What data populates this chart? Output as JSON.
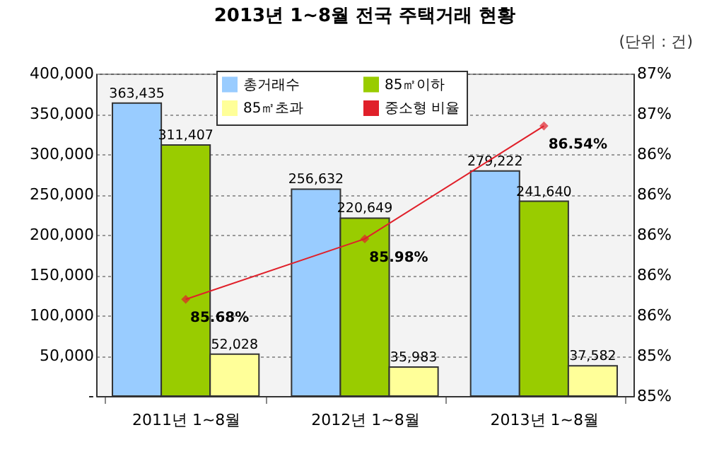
{
  "chart_data": {
    "type": "bar",
    "title": "2013년 1~8월 전국 주택거래 현황",
    "annotations": [
      "(단위 : 건)"
    ],
    "categories": [
      "2011년 1~8월",
      "2012년 1~8월",
      "2013년 1~8월"
    ],
    "series": [
      {
        "name": "총거래수",
        "color": "#99ccff",
        "values": [
          363435,
          256632,
          279222
        ],
        "value_labels": [
          "363,435",
          "256,632",
          "279,222"
        ]
      },
      {
        "name": "85㎡이하",
        "color": "#99cc00",
        "values": [
          311407,
          220649,
          241640
        ],
        "value_labels": [
          "311,407",
          "220,649",
          "241,640"
        ]
      },
      {
        "name": "85㎡초과",
        "color": "#ffff99",
        "values": [
          52028,
          35983,
          37582
        ],
        "value_labels": [
          "52,028",
          "35,983",
          "37,582"
        ]
      },
      {
        "name": "중소형 비율",
        "type": "line",
        "axis": "y2",
        "color": "#e0202a",
        "marker": "diamond",
        "values": [
          85.68,
          85.98,
          86.54
        ],
        "value_labels": [
          "85.68%",
          "85.98%",
          "86.54%"
        ]
      }
    ],
    "ylim": [
      0,
      400000
    ],
    "yticks": [
      {
        "value": 0,
        "label": "-"
      },
      {
        "value": 50000,
        "label": "50,000"
      },
      {
        "value": 100000,
        "label": "100,000"
      },
      {
        "value": 150000,
        "label": "150,000"
      },
      {
        "value": 200000,
        "label": "200,000"
      },
      {
        "value": 250000,
        "label": "250,000"
      },
      {
        "value": 300000,
        "label": "300,000"
      },
      {
        "value": 350000,
        "label": "350,000"
      },
      {
        "value": 400000,
        "label": "400,000"
      }
    ],
    "y2lim": [
      85.2,
      86.8
    ],
    "y2ticks": [
      {
        "value": 85.2,
        "label": "85%"
      },
      {
        "value": 85.4,
        "label": "85%"
      },
      {
        "value": 85.6,
        "label": "86%"
      },
      {
        "value": 85.8,
        "label": "86%"
      },
      {
        "value": 86.0,
        "label": "86%"
      },
      {
        "value": 86.2,
        "label": "86%"
      },
      {
        "value": 86.4,
        "label": "86%"
      },
      {
        "value": 86.6,
        "label": "87%"
      },
      {
        "value": 86.8,
        "label": "87%"
      }
    ],
    "grid": "y",
    "legend": "top"
  }
}
